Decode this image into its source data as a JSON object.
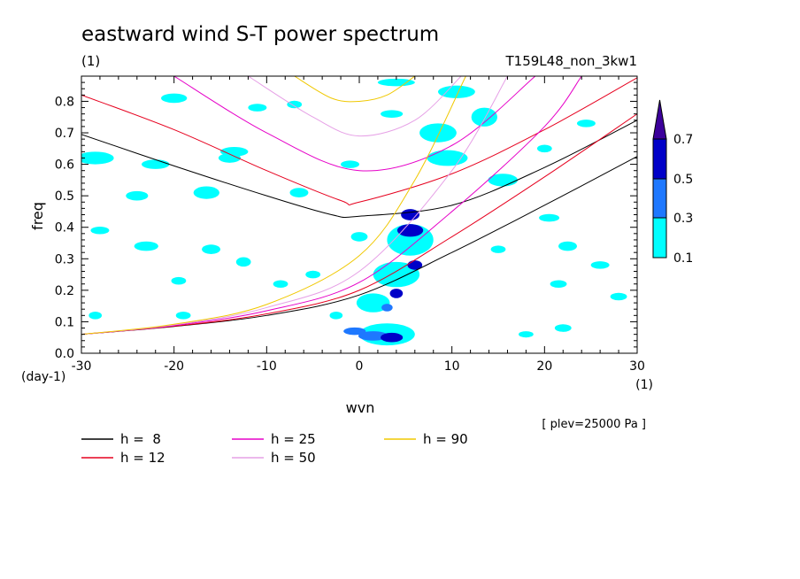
{
  "header": {
    "title": "eastward wind S-T power spectrum",
    "subtitle_left": "(1)",
    "subtitle_right": "T159L48_non_3kw1"
  },
  "axes": {
    "xlabel": "wvn",
    "ylabel": "freq",
    "xunit": "(1)",
    "yunit": "(day-1)",
    "xticks": [
      "-30",
      "-20",
      "-10",
      "0",
      "10",
      "20",
      "30"
    ],
    "yticks": [
      "0.0",
      "0.1",
      "0.2",
      "0.3",
      "0.4",
      "0.5",
      "0.6",
      "0.7",
      "0.8"
    ],
    "footnote": "[ plev=25000 Pa ]"
  },
  "colorbar": {
    "levels": [
      "0.1",
      "0.3",
      "0.5",
      "0.7"
    ],
    "colors": [
      "#00ffff",
      "#1e78ff",
      "#0000c8",
      "#3c009b"
    ]
  },
  "legend": [
    {
      "label": "h =  8",
      "color": "#000000"
    },
    {
      "label": "h = 12",
      "color": "#e6001e"
    },
    {
      "label": "h = 25",
      "color": "#e600c8"
    },
    {
      "label": "h = 50",
      "color": "#e6a0e6"
    },
    {
      "label": "h = 90",
      "color": "#f0c800"
    }
  ],
  "chart_data": {
    "type": "heatmap",
    "title": "eastward wind S-T power spectrum",
    "xlabel": "wvn",
    "ylabel": "freq",
    "xlim": [
      -30,
      30
    ],
    "ylim": [
      0,
      0.88
    ],
    "contour_levels": [
      0.1,
      0.3,
      0.5,
      0.7
    ],
    "dispersion_curves": [
      {
        "name": "h =  8",
        "color": "#000000",
        "kelvin_start": [
          -30,
          0.06
        ],
        "kelvin_points": [
          [
            -30,
            0.06
          ],
          [
            -20,
            0.085
          ],
          [
            -10,
            0.12
          ],
          [
            0,
            0.185
          ],
          [
            10,
            0.32
          ],
          [
            20,
            0.47
          ],
          [
            30,
            0.625
          ]
        ],
        "ig_points": [
          [
            -30,
            0.695
          ],
          [
            -20,
            0.595
          ],
          [
            -10,
            0.5
          ],
          [
            -3,
            0.44
          ],
          [
            0,
            0.435
          ],
          [
            10,
            0.47
          ],
          [
            20,
            0.59
          ],
          [
            30,
            0.74
          ]
        ]
      },
      {
        "name": "h = 12",
        "color": "#e6001e",
        "kelvin_points": [
          [
            -30,
            0.06
          ],
          [
            -20,
            0.086
          ],
          [
            -10,
            0.125
          ],
          [
            0,
            0.2
          ],
          [
            10,
            0.37
          ],
          [
            20,
            0.56
          ],
          [
            30,
            0.76
          ]
        ],
        "ig_points": [
          [
            -30,
            0.82
          ],
          [
            -20,
            0.71
          ],
          [
            -10,
            0.58
          ],
          [
            -2,
            0.485
          ],
          [
            0,
            0.48
          ],
          [
            10,
            0.57
          ],
          [
            20,
            0.71
          ],
          [
            30,
            0.875
          ]
        ]
      },
      {
        "name": "h = 25",
        "color": "#e600c8",
        "kelvin_points": [
          [
            -30,
            0.06
          ],
          [
            -20,
            0.088
          ],
          [
            -10,
            0.135
          ],
          [
            0,
            0.225
          ],
          [
            10,
            0.45
          ],
          [
            20,
            0.72
          ],
          [
            24,
            0.88
          ]
        ],
        "ig_points": [
          [
            -20,
            0.88
          ],
          [
            -10,
            0.7
          ],
          [
            0,
            0.58
          ],
          [
            10,
            0.66
          ],
          [
            19,
            0.88
          ]
        ]
      },
      {
        "name": "h = 50",
        "color": "#e6a0e6",
        "kelvin_points": [
          [
            -30,
            0.06
          ],
          [
            -20,
            0.09
          ],
          [
            -10,
            0.145
          ],
          [
            0,
            0.26
          ],
          [
            10,
            0.58
          ],
          [
            16,
            0.88
          ]
        ],
        "ig_points": [
          [
            -12,
            0.88
          ],
          [
            -5,
            0.75
          ],
          [
            0,
            0.69
          ],
          [
            6,
            0.74
          ],
          [
            11,
            0.88
          ]
        ]
      },
      {
        "name": "h = 90",
        "color": "#f0c800",
        "kelvin_points": [
          [
            -30,
            0.06
          ],
          [
            -20,
            0.092
          ],
          [
            -10,
            0.155
          ],
          [
            0,
            0.31
          ],
          [
            6,
            0.55
          ],
          [
            11.5,
            0.88
          ]
        ],
        "ig_points": [
          [
            -7,
            0.88
          ],
          [
            -3,
            0.81
          ],
          [
            0,
            0.8
          ],
          [
            3,
            0.82
          ],
          [
            6,
            0.88
          ]
        ]
      }
    ],
    "patches": [
      {
        "x": 1.5,
        "y": 0.055,
        "rx": 1.6,
        "ry": 0.015,
        "level": 0.3
      },
      {
        "x": 3.5,
        "y": 0.05,
        "rx": 1.2,
        "ry": 0.015,
        "level": 0.5
      },
      {
        "x": -0.5,
        "y": 0.07,
        "rx": 1.2,
        "ry": 0.012,
        "level": 0.3
      },
      {
        "x": 5.5,
        "y": 0.44,
        "rx": 1.0,
        "ry": 0.018,
        "level": 0.5
      },
      {
        "x": 5.5,
        "y": 0.39,
        "rx": 1.4,
        "ry": 0.02,
        "level": 0.5
      },
      {
        "x": 6.0,
        "y": 0.28,
        "rx": 0.8,
        "ry": 0.015,
        "level": 0.5
      },
      {
        "x": 4.0,
        "y": 0.19,
        "rx": 0.7,
        "ry": 0.015,
        "level": 0.5
      },
      {
        "x": 3.0,
        "y": 0.145,
        "rx": 0.6,
        "ry": 0.012,
        "level": 0.3
      },
      {
        "x": 5.5,
        "y": 0.36,
        "rx": 2.5,
        "ry": 0.05,
        "level": 0.1
      },
      {
        "x": 4.0,
        "y": 0.25,
        "rx": 2.5,
        "ry": 0.04,
        "level": 0.1
      },
      {
        "x": 3.0,
        "y": 0.06,
        "rx": 3.0,
        "ry": 0.035,
        "level": 0.1
      },
      {
        "x": 1.5,
        "y": 0.16,
        "rx": 1.8,
        "ry": 0.03,
        "level": 0.1
      },
      {
        "x": 8.5,
        "y": 0.7,
        "rx": 2.0,
        "ry": 0.03,
        "level": 0.1
      },
      {
        "x": 10.5,
        "y": 0.83,
        "rx": 2.0,
        "ry": 0.02,
        "level": 0.1
      },
      {
        "x": 13.5,
        "y": 0.75,
        "rx": 1.4,
        "ry": 0.03,
        "level": 0.1
      },
      {
        "x": 9.5,
        "y": 0.62,
        "rx": 2.2,
        "ry": 0.025,
        "level": 0.1
      },
      {
        "x": 15.5,
        "y": 0.55,
        "rx": 1.6,
        "ry": 0.02,
        "level": 0.1
      },
      {
        "x": -28.5,
        "y": 0.62,
        "rx": 2.0,
        "ry": 0.02,
        "level": 0.1
      },
      {
        "x": -22.0,
        "y": 0.6,
        "rx": 1.5,
        "ry": 0.015,
        "level": 0.1
      },
      {
        "x": -14.0,
        "y": 0.62,
        "rx": 1.2,
        "ry": 0.015,
        "level": 0.1
      },
      {
        "x": -16.5,
        "y": 0.51,
        "rx": 1.4,
        "ry": 0.02,
        "level": 0.1
      },
      {
        "x": -24.0,
        "y": 0.5,
        "rx": 1.2,
        "ry": 0.015,
        "level": 0.1
      },
      {
        "x": -28.0,
        "y": 0.39,
        "rx": 1.0,
        "ry": 0.012,
        "level": 0.1
      },
      {
        "x": -23.0,
        "y": 0.34,
        "rx": 1.3,
        "ry": 0.015,
        "level": 0.1
      },
      {
        "x": -16.0,
        "y": 0.33,
        "rx": 1.0,
        "ry": 0.015,
        "level": 0.1
      },
      {
        "x": -12.5,
        "y": 0.29,
        "rx": 0.8,
        "ry": 0.015,
        "level": 0.1
      },
      {
        "x": -19.5,
        "y": 0.23,
        "rx": 0.8,
        "ry": 0.012,
        "level": 0.1
      },
      {
        "x": -19.0,
        "y": 0.12,
        "rx": 0.8,
        "ry": 0.012,
        "level": 0.1
      },
      {
        "x": -28.5,
        "y": 0.12,
        "rx": 0.7,
        "ry": 0.012,
        "level": 0.1
      },
      {
        "x": -13.5,
        "y": 0.64,
        "rx": 1.5,
        "ry": 0.015,
        "level": 0.1
      },
      {
        "x": -20.0,
        "y": 0.81,
        "rx": 1.4,
        "ry": 0.015,
        "level": 0.1
      },
      {
        "x": -6.5,
        "y": 0.51,
        "rx": 1.0,
        "ry": 0.015,
        "level": 0.1
      },
      {
        "x": -1.0,
        "y": 0.6,
        "rx": 1.0,
        "ry": 0.012,
        "level": 0.1
      },
      {
        "x": 3.5,
        "y": 0.76,
        "rx": 1.2,
        "ry": 0.012,
        "level": 0.1
      },
      {
        "x": 4.0,
        "y": 0.86,
        "rx": 2.0,
        "ry": 0.012,
        "level": 0.1
      },
      {
        "x": 22.5,
        "y": 0.34,
        "rx": 1.0,
        "ry": 0.015,
        "level": 0.1
      },
      {
        "x": 26.0,
        "y": 0.28,
        "rx": 1.0,
        "ry": 0.012,
        "level": 0.1
      },
      {
        "x": 24.5,
        "y": 0.73,
        "rx": 1.0,
        "ry": 0.012,
        "level": 0.1
      },
      {
        "x": 20.5,
        "y": 0.43,
        "rx": 1.1,
        "ry": 0.012,
        "level": 0.1
      },
      {
        "x": 21.5,
        "y": 0.22,
        "rx": 0.9,
        "ry": 0.012,
        "level": 0.1
      },
      {
        "x": 28.0,
        "y": 0.18,
        "rx": 0.9,
        "ry": 0.012,
        "level": 0.1
      },
      {
        "x": 22.0,
        "y": 0.08,
        "rx": 0.9,
        "ry": 0.012,
        "level": 0.1
      },
      {
        "x": 15.0,
        "y": 0.33,
        "rx": 0.8,
        "ry": 0.012,
        "level": 0.1
      },
      {
        "x": 18.0,
        "y": 0.06,
        "rx": 0.8,
        "ry": 0.01,
        "level": 0.1
      },
      {
        "x": -5.0,
        "y": 0.25,
        "rx": 0.8,
        "ry": 0.012,
        "level": 0.1
      },
      {
        "x": -8.5,
        "y": 0.22,
        "rx": 0.8,
        "ry": 0.012,
        "level": 0.1
      },
      {
        "x": -2.5,
        "y": 0.12,
        "rx": 0.7,
        "ry": 0.012,
        "level": 0.1
      },
      {
        "x": 0.0,
        "y": 0.37,
        "rx": 0.9,
        "ry": 0.015,
        "level": 0.1
      },
      {
        "x": -11.0,
        "y": 0.78,
        "rx": 1.0,
        "ry": 0.012,
        "level": 0.1
      },
      {
        "x": -7.0,
        "y": 0.79,
        "rx": 0.8,
        "ry": 0.012,
        "level": 0.1
      },
      {
        "x": 20.0,
        "y": 0.65,
        "rx": 0.8,
        "ry": 0.012,
        "level": 0.1
      }
    ]
  }
}
